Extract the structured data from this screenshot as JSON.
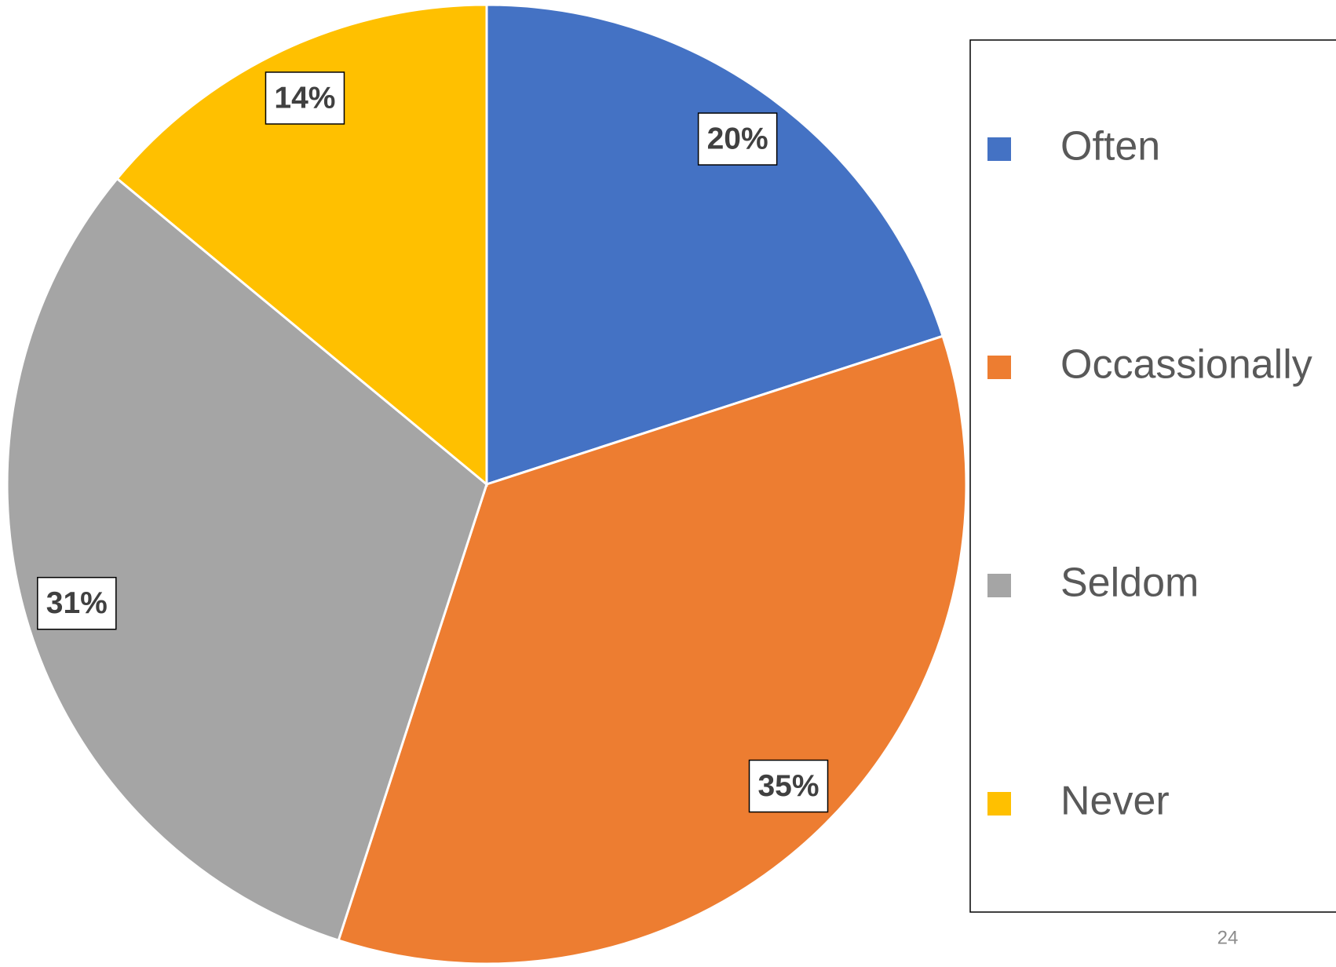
{
  "chart_data": {
    "type": "pie",
    "categories": [
      "Often",
      "Occassionally",
      "Seldom",
      "Never"
    ],
    "values": [
      20,
      35,
      31,
      14
    ],
    "value_labels": [
      "20%",
      "35%",
      "31%",
      "14%"
    ],
    "colors": [
      "#4472c4",
      "#ed7d31",
      "#a5a5a5",
      "#ffc000"
    ],
    "legend": "right"
  },
  "slide_number": "24"
}
